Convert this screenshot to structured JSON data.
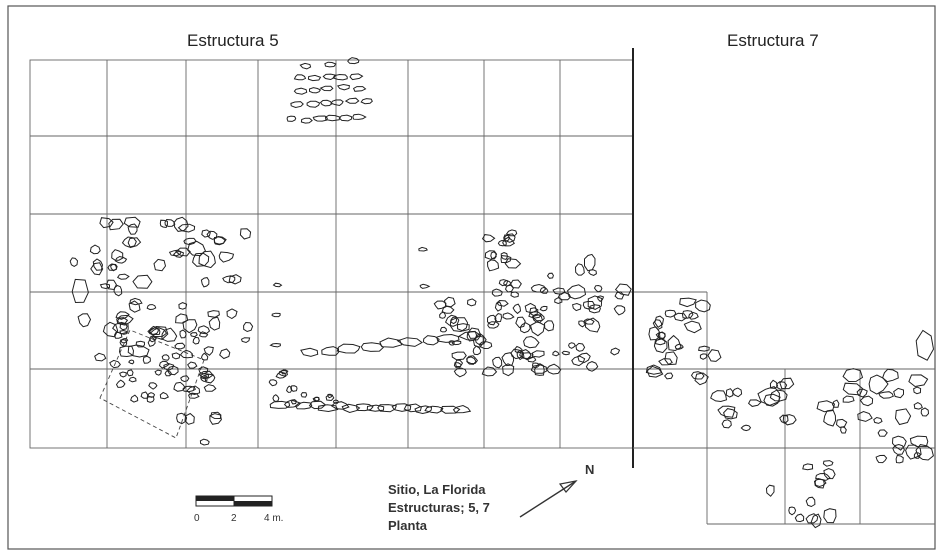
{
  "titles": {
    "structure_5": "Estructura  5",
    "structure_7": "Estructura 7"
  },
  "legend": {
    "line1": "Sitio, La Florida",
    "line2": "Estructuras; 5, 7",
    "line3": "Planta"
  },
  "north_label": "N",
  "scale": {
    "labels": [
      "0",
      "2",
      "4 m."
    ]
  }
}
